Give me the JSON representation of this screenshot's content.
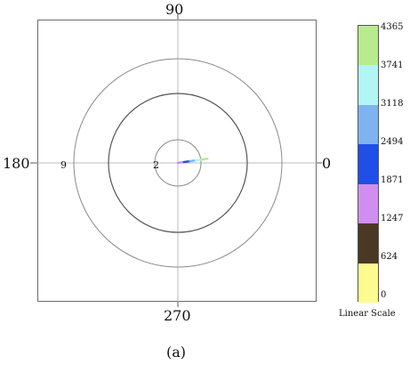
{
  "chart_data": {
    "type": "polar",
    "direction_labels": {
      "top": "90",
      "left": "180",
      "right": "0",
      "bottom": "270"
    },
    "radial_rings": [
      {
        "label": "2"
      },
      {
        "label": ""
      },
      {
        "label": "9"
      }
    ],
    "colorbar": {
      "ticks": [
        "4365",
        "3741",
        "3118",
        "2494",
        "1871",
        "1247",
        "624",
        "0"
      ],
      "colors": [
        "#b8ea8e",
        "#b2f5f5",
        "#7fb3f0",
        "#1f4fe6",
        "#d08ff0",
        "#4a3824",
        "#fcfc8e"
      ],
      "scale_label": "Linear Scale"
    },
    "data_streak": {
      "direction_deg": 8,
      "radius_start": 0,
      "radius_end": 2.6
    }
  },
  "caption": "(a)"
}
